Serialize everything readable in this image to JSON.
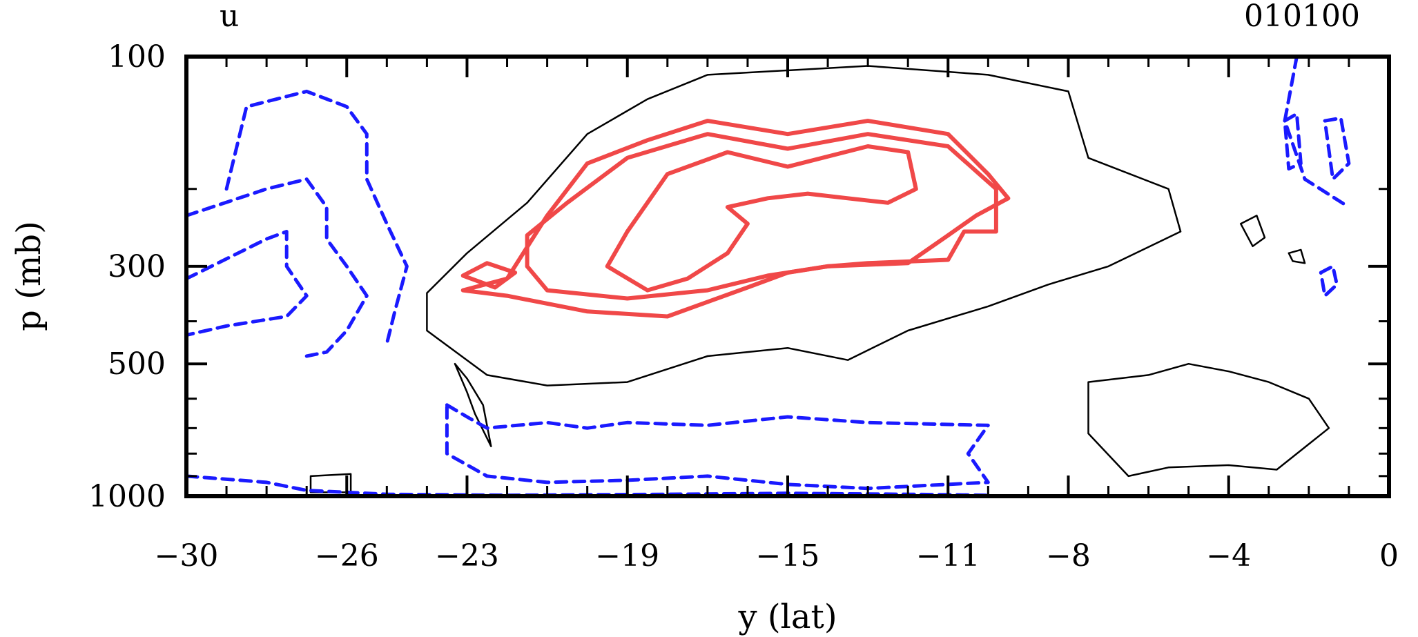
{
  "chart_data": {
    "type": "contour",
    "title_left": "u",
    "title_right": "010100",
    "xlabel": "y (lat)",
    "ylabel": "p (mb)",
    "xlim": [
      -30,
      0
    ],
    "ylim": [
      1000,
      100
    ],
    "y_scale": "log",
    "x_ticks": [
      "-30",
      "-26",
      "-23",
      "-19",
      "-15",
      "-11",
      "-8",
      "-4",
      "0"
    ],
    "x_tick_values": [
      -30,
      -26,
      -23,
      -19,
      -15,
      -11,
      -8,
      -4,
      0
    ],
    "y_ticks": [
      "100",
      "300",
      "500",
      "1000"
    ],
    "y_tick_values": [
      100,
      300,
      500,
      1000
    ],
    "colors": {
      "positive": "#f04848",
      "zero": "#000000",
      "negative": "#1a1aff"
    },
    "series": [
      {
        "style": "positive",
        "contours": [
          [
            [
              -23.1,
              340
            ],
            [
              -22.0,
              320
            ],
            [
              -21.0,
              230
            ],
            [
              -20.0,
              175
            ],
            [
              -18.5,
              155
            ],
            [
              -17.0,
              140
            ],
            [
              -15.0,
              150
            ],
            [
              -13.0,
              140
            ],
            [
              -11.0,
              150
            ],
            [
              -10.0,
              185
            ],
            [
              -9.5,
              210
            ],
            [
              -10.3,
              230
            ],
            [
              -11.0,
              255
            ],
            [
              -12.0,
              295
            ],
            [
              -14.0,
              300
            ],
            [
              -15.0,
              310
            ],
            [
              -16.0,
              335
            ],
            [
              -18.0,
              390
            ],
            [
              -20.0,
              380
            ],
            [
              -22.0,
              350
            ],
            [
              -23.1,
              340
            ]
          ],
          [
            [
              -21.5,
              255
            ],
            [
              -20.5,
              215
            ],
            [
              -19.0,
              170
            ],
            [
              -17.0,
              150
            ],
            [
              -15.0,
              162
            ],
            [
              -13.0,
              150
            ],
            [
              -11.0,
              160
            ],
            [
              -9.8,
              200
            ],
            [
              -9.8,
              250
            ],
            [
              -10.6,
              250
            ],
            [
              -11.0,
              290
            ],
            [
              -13.0,
              295
            ],
            [
              -14.0,
              300
            ],
            [
              -15.5,
              315
            ],
            [
              -17.0,
              340
            ],
            [
              -19.0,
              355
            ],
            [
              -21.0,
              340
            ],
            [
              -21.5,
              300
            ],
            [
              -21.5,
              255
            ]
          ],
          [
            [
              -19.5,
              300
            ],
            [
              -19.0,
              250
            ],
            [
              -18.0,
              185
            ],
            [
              -16.5,
              165
            ],
            [
              -15.0,
              178
            ],
            [
              -13.0,
              160
            ],
            [
              -12.0,
              165
            ],
            [
              -11.8,
              200
            ],
            [
              -12.5,
              215
            ],
            [
              -13.5,
              210
            ],
            [
              -14.5,
              205
            ],
            [
              -15.5,
              210
            ],
            [
              -16.5,
              220
            ],
            [
              -16.0,
              240
            ],
            [
              -16.5,
              280
            ],
            [
              -17.5,
              320
            ],
            [
              -18.5,
              340
            ],
            [
              -19.5,
              300
            ]
          ],
          [
            [
              -23.1,
              315
            ],
            [
              -22.5,
              295
            ],
            [
              -21.8,
              310
            ],
            [
              -22.3,
              335
            ],
            [
              -23.1,
              315
            ]
          ]
        ]
      },
      {
        "style": "zero",
        "contours": [
          [
            [
              -24.0,
              345
            ],
            [
              -23.0,
              280
            ],
            [
              -21.5,
              215
            ],
            [
              -20.0,
              150
            ],
            [
              -18.5,
              125
            ],
            [
              -17.0,
              110
            ],
            [
              -13.0,
              105
            ],
            [
              -10.0,
              110
            ],
            [
              -8.0,
              120
            ],
            [
              -7.5,
              170
            ],
            [
              -5.5,
              200
            ],
            [
              -5.2,
              250
            ],
            [
              -7.0,
              300
            ],
            [
              -8.5,
              330
            ],
            [
              -10.0,
              370
            ],
            [
              -12.0,
              420
            ],
            [
              -13.5,
              490
            ],
            [
              -15.0,
              460
            ],
            [
              -17.0,
              480
            ],
            [
              -19.0,
              550
            ],
            [
              -21.0,
              560
            ],
            [
              -22.5,
              530
            ],
            [
              -24.0,
              420
            ],
            [
              -24.0,
              345
            ]
          ],
          [
            [
              -23.3,
              500
            ],
            [
              -23.0,
              540
            ],
            [
              -22.6,
              620
            ],
            [
              -22.4,
              770
            ],
            [
              -22.8,
              650
            ],
            [
              -23.0,
              580
            ],
            [
              -23.3,
              500
            ]
          ],
          [
            [
              -7.5,
              550
            ],
            [
              -6.0,
              530
            ],
            [
              -5.0,
              500
            ],
            [
              -4.0,
              520
            ],
            [
              -3.0,
              550
            ],
            [
              -2.0,
              600
            ],
            [
              -1.5,
              700
            ],
            [
              -2.8,
              870
            ],
            [
              -4.0,
              850
            ],
            [
              -5.5,
              860
            ],
            [
              -6.5,
              900
            ],
            [
              -7.5,
              720
            ],
            [
              -7.5,
              550
            ]
          ],
          [
            [
              -3.7,
              240
            ],
            [
              -3.3,
              230
            ],
            [
              -3.1,
              258
            ],
            [
              -3.4,
              270
            ],
            [
              -3.7,
              240
            ]
          ],
          [
            [
              -2.5,
              280
            ],
            [
              -2.2,
              275
            ],
            [
              -2.1,
              295
            ],
            [
              -2.4,
              292
            ],
            [
              -2.5,
              280
            ]
          ],
          [
            [
              -26.9,
              900
            ],
            [
              -25.9,
              890
            ],
            [
              -25.9,
              980
            ],
            [
              -26.9,
              980
            ],
            [
              -26.9,
              900
            ]
          ]
        ]
      },
      {
        "style": "negative",
        "contours": [
          [
            [
              -29.0,
              200
            ],
            [
              -28.5,
              130
            ],
            [
              -27.0,
              120
            ],
            [
              -26.0,
              130
            ],
            [
              -25.5,
              150
            ],
            [
              -25.5,
              190
            ],
            [
              -25.0,
              240
            ],
            [
              -24.5,
              300
            ],
            [
              -24.8,
              380
            ],
            [
              -25.0,
              450
            ]
          ],
          [
            [
              -30.0,
              230
            ],
            [
              -28.0,
              200
            ],
            [
              -27.0,
              190
            ],
            [
              -26.5,
              220
            ],
            [
              -26.5,
              260
            ],
            [
              -26.0,
              300
            ],
            [
              -25.5,
              350
            ],
            [
              -26.0,
              420
            ],
            [
              -26.5,
              470
            ],
            [
              -27.0,
              480
            ]
          ],
          [
            [
              -30.0,
              320
            ],
            [
              -28.0,
              260
            ],
            [
              -27.5,
              250
            ],
            [
              -27.5,
              300
            ],
            [
              -27.0,
              350
            ],
            [
              -27.5,
              390
            ],
            [
              -29.0,
              410
            ],
            [
              -30.0,
              430
            ]
          ],
          [
            [
              -23.5,
              620
            ],
            [
              -23.0,
              660
            ],
            [
              -22.5,
              700
            ],
            [
              -21.0,
              680
            ],
            [
              -20.0,
              700
            ],
            [
              -19.0,
              680
            ],
            [
              -17.0,
              690
            ],
            [
              -15.0,
              660
            ],
            [
              -13.0,
              680
            ],
            [
              -10.0,
              690
            ],
            [
              -10.5,
              800
            ],
            [
              -10.0,
              930
            ],
            [
              -13.0,
              960
            ],
            [
              -15.0,
              940
            ],
            [
              -17.0,
              900
            ],
            [
              -19.0,
              920
            ],
            [
              -21.0,
              930
            ],
            [
              -22.5,
              900
            ],
            [
              -23.5,
              800
            ],
            [
              -23.5,
              620
            ]
          ],
          [
            [
              -30.0,
              900
            ],
            [
              -28.0,
              930
            ],
            [
              -27.0,
              970
            ],
            [
              -25.0,
              990
            ],
            [
              -22.0,
              995
            ],
            [
              -18.0,
              990
            ],
            [
              -15.0,
              985
            ],
            [
              -12.0,
              990
            ],
            [
              -10.0,
              995
            ]
          ],
          [
            [
              -2.3,
              100
            ],
            [
              -2.6,
              140
            ],
            [
              -2.1,
              190
            ],
            [
              -1.0,
              220
            ]
          ],
          [
            [
              -2.6,
              140
            ],
            [
              -2.3,
              135
            ],
            [
              -2.2,
              175
            ],
            [
              -2.5,
              180
            ],
            [
              -2.6,
              140
            ]
          ],
          [
            [
              -1.6,
              140
            ],
            [
              -1.2,
              138
            ],
            [
              -1.0,
              175
            ],
            [
              -1.4,
              190
            ],
            [
              -1.6,
              140
            ]
          ],
          [
            [
              -1.7,
              310
            ],
            [
              -1.4,
              300
            ],
            [
              -1.3,
              330
            ],
            [
              -1.6,
              350
            ],
            [
              -1.7,
              310
            ]
          ]
        ]
      }
    ]
  }
}
